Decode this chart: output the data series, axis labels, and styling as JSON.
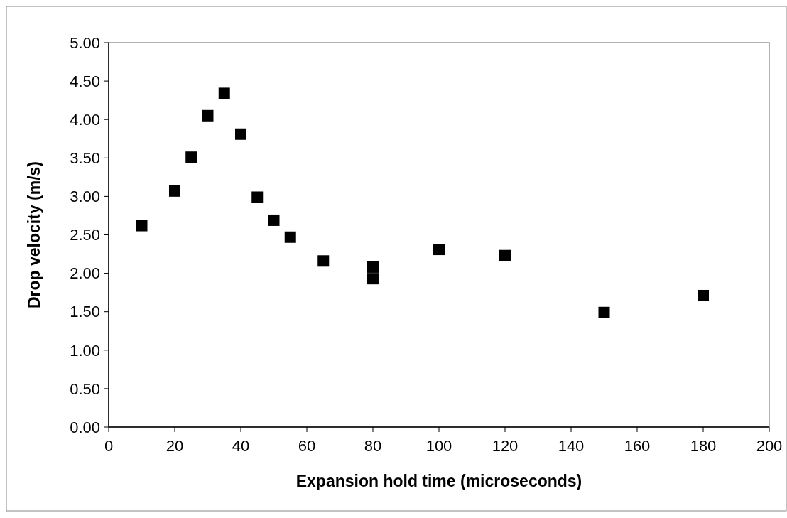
{
  "chart_data": {
    "type": "scatter",
    "xlabel": "Expansion hold time (microseconds)",
    "ylabel": "Drop velocity (m/s)",
    "x": [
      10,
      20,
      25,
      30,
      35,
      40,
      45,
      50,
      55,
      65,
      80,
      80,
      100,
      120,
      150,
      180
    ],
    "series": [
      {
        "color": "#000000",
        "values": [
          2.62,
          3.07,
          3.51,
          4.05,
          4.34,
          3.81,
          2.99,
          2.69,
          2.47,
          2.16,
          2.08,
          1.93,
          2.31,
          2.23,
          1.49,
          1.71
        ]
      }
    ],
    "xlim": [
      0,
      200
    ],
    "xticks": [
      0,
      20,
      40,
      60,
      80,
      100,
      120,
      140,
      160,
      180,
      200
    ],
    "ylim": [
      0,
      5
    ],
    "yticks": [
      {
        "value": 0,
        "label": "0.00"
      },
      {
        "value": 0.5,
        "label": "0.50"
      },
      {
        "value": 1,
        "label": "1.00"
      },
      {
        "value": 1.5,
        "label": "1.50"
      },
      {
        "value": 2,
        "label": "2.00"
      },
      {
        "value": 2.5,
        "label": "2.50"
      },
      {
        "value": 3,
        "label": "3.00"
      },
      {
        "value": 3.5,
        "label": "3.50"
      },
      {
        "value": 4,
        "label": "4.00"
      },
      {
        "value": 4.5,
        "label": "4.50"
      },
      {
        "value": 5,
        "label": "5.00"
      }
    ],
    "marker": "square",
    "grid": false
  }
}
